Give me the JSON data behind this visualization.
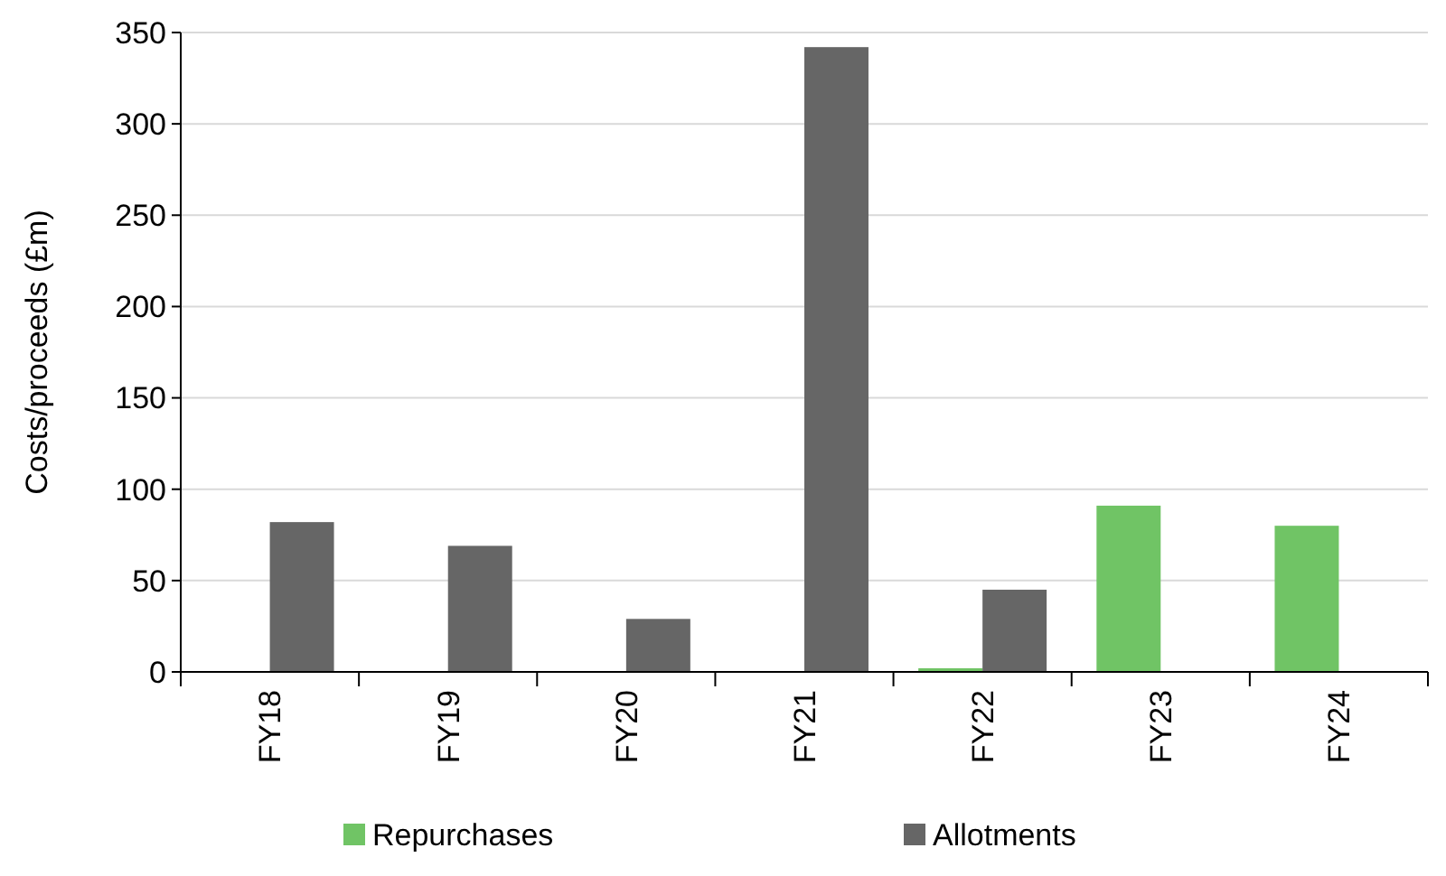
{
  "chart_data": {
    "type": "bar",
    "ylabel": "Costs/proceeds (£m)",
    "categories": [
      "FY18",
      "FY19",
      "FY20",
      "FY21",
      "FY22",
      "FY23",
      "FY24"
    ],
    "series": [
      {
        "name": "Repurchases",
        "color": "#70c465",
        "values": [
          null,
          null,
          null,
          null,
          2,
          91,
          80
        ]
      },
      {
        "name": "Allotments",
        "color": "#666666",
        "values": [
          82,
          69,
          29,
          342,
          45,
          null,
          null
        ]
      }
    ],
    "ylim": [
      0,
      350
    ],
    "yticks": [
      0,
      50,
      100,
      150,
      200,
      250,
      300,
      350
    ],
    "grid": "y",
    "legend": "bottom"
  }
}
